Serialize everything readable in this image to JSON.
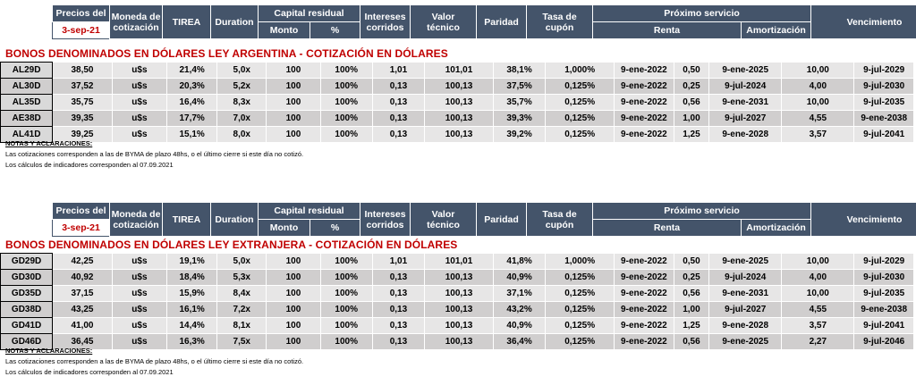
{
  "header": {
    "precios_del": "Precios del",
    "date": "3-sep-21",
    "moneda": [
      "Moneda de",
      "cotización"
    ],
    "tirea": "TIREA",
    "duration": "Duration",
    "capital_residual": "Capital residual",
    "monto": "Monto",
    "pct": "%",
    "intereses": [
      "Intereses",
      "corridos"
    ],
    "valor": [
      "Valor",
      "técnico"
    ],
    "paridad": "Paridad",
    "tasa": [
      "Tasa de",
      "cupón"
    ],
    "proximo": "Próximo servicio",
    "renta": "Renta",
    "amortizacion": "Amortización",
    "vencimiento": "Vencimiento"
  },
  "section1": {
    "title": "BONOS DENOMINADOS EN DÓLARES LEY ARGENTINA   -   COTIZACIÓN EN DÓLARES",
    "rows": [
      [
        "AL29D",
        "38,50",
        "u$s",
        "21,4%",
        "5,0x",
        "100",
        "100%",
        "1,01",
        "101,01",
        "38,1%",
        "1,000%",
        "9-ene-2022",
        "0,50",
        "9-ene-2025",
        "10,00",
        "9-jul-2029"
      ],
      [
        "AL30D",
        "37,52",
        "u$s",
        "20,3%",
        "5,2x",
        "100",
        "100%",
        "0,13",
        "100,13",
        "37,5%",
        "0,125%",
        "9-ene-2022",
        "0,25",
        "9-jul-2024",
        "4,00",
        "9-jul-2030"
      ],
      [
        "AL35D",
        "35,75",
        "u$s",
        "16,4%",
        "8,3x",
        "100",
        "100%",
        "0,13",
        "100,13",
        "35,7%",
        "0,125%",
        "9-ene-2022",
        "0,56",
        "9-ene-2031",
        "10,00",
        "9-jul-2035"
      ],
      [
        "AE38D",
        "39,35",
        "u$s",
        "17,7%",
        "7,0x",
        "100",
        "100%",
        "0,13",
        "100,13",
        "39,3%",
        "0,125%",
        "9-ene-2022",
        "1,00",
        "9-jul-2027",
        "4,55",
        "9-ene-2038"
      ],
      [
        "AL41D",
        "39,25",
        "u$s",
        "15,1%",
        "8,0x",
        "100",
        "100%",
        "0,13",
        "100,13",
        "39,2%",
        "0,125%",
        "9-ene-2022",
        "1,25",
        "9-ene-2028",
        "3,57",
        "9-jul-2041"
      ]
    ],
    "notes": [
      "NOTAS Y ACLARACIONES:",
      "Las cotizaciones corresponden a las de BYMA de plazo 48hs, o el último cierre si este día no cotizó.",
      "Los cálculos de indicadores corresponden al 07.09.2021"
    ]
  },
  "section2": {
    "title": "BONOS DENOMINADOS EN DÓLARES LEY EXTRANJERA   -   COTIZACIÓN EN DÓLARES",
    "rows": [
      [
        "GD29D",
        "42,25",
        "u$s",
        "19,1%",
        "5,0x",
        "100",
        "100%",
        "1,01",
        "101,01",
        "41,8%",
        "1,000%",
        "9-ene-2022",
        "0,50",
        "9-ene-2025",
        "10,00",
        "9-jul-2029"
      ],
      [
        "GD30D",
        "40,92",
        "u$s",
        "18,4%",
        "5,3x",
        "100",
        "100%",
        "0,13",
        "100,13",
        "40,9%",
        "0,125%",
        "9-ene-2022",
        "0,25",
        "9-jul-2024",
        "4,00",
        "9-jul-2030"
      ],
      [
        "GD35D",
        "37,15",
        "u$s",
        "15,9%",
        "8,4x",
        "100",
        "100%",
        "0,13",
        "100,13",
        "37,1%",
        "0,125%",
        "9-ene-2022",
        "0,56",
        "9-ene-2031",
        "10,00",
        "9-jul-2035"
      ],
      [
        "GD38D",
        "43,25",
        "u$s",
        "16,1%",
        "7,2x",
        "100",
        "100%",
        "0,13",
        "100,13",
        "43,2%",
        "0,125%",
        "9-ene-2022",
        "1,00",
        "9-jul-2027",
        "4,55",
        "9-ene-2038"
      ],
      [
        "GD41D",
        "41,00",
        "u$s",
        "14,4%",
        "8,1x",
        "100",
        "100%",
        "0,13",
        "100,13",
        "40,9%",
        "0,125%",
        "9-ene-2022",
        "1,25",
        "9-ene-2028",
        "3,57",
        "9-jul-2041"
      ],
      [
        "GD46D",
        "36,45",
        "u$s",
        "16,3%",
        "7,5x",
        "100",
        "100%",
        "0,13",
        "100,13",
        "36,4%",
        "0,125%",
        "9-ene-2022",
        "0,56",
        "9-ene-2025",
        "2,27",
        "9-jul-2046"
      ]
    ],
    "notes": [
      "NOTAS Y ACLARACIONES:",
      "Las cotizaciones corresponden a las de BYMA de plazo 48hs, o el último cierre si este día no cotizó.",
      "Los cálculos de indicadores corresponden al 07.09.2021"
    ]
  }
}
